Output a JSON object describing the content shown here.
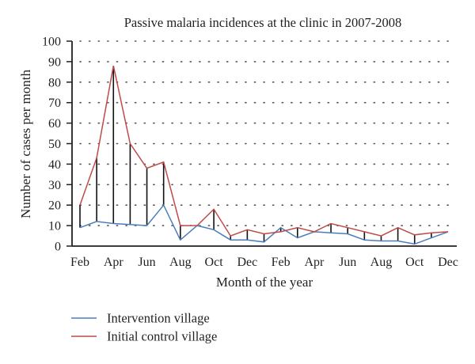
{
  "chart_data": {
    "type": "line",
    "title": "Passive malaria incidences at the clinic in 2007-2008",
    "xlabel": "Month of the year",
    "ylabel": "Number of cases per month",
    "ylim": [
      0,
      100
    ],
    "yticks": [
      0,
      10,
      20,
      30,
      40,
      50,
      60,
      70,
      80,
      90,
      100
    ],
    "grid": "horizontal dotted",
    "x": [
      "Feb 2007",
      "Mar 2007",
      "Apr 2007",
      "May 2007",
      "Jun 2007",
      "Jul 2007",
      "Aug 2007",
      "Sep 2007",
      "Oct 2007",
      "Nov 2007",
      "Dec 2007",
      "Jan 2008",
      "Feb 2008",
      "Mar 2008",
      "Apr 2008",
      "May 2008",
      "Jun 2008",
      "Jul 2008",
      "Aug 2008",
      "Sep 2008",
      "Oct 2008",
      "Nov 2008",
      "Dec 2008"
    ],
    "xtick_labels": [
      "Feb",
      "",
      "Apr",
      "",
      "Jun",
      "",
      "Aug",
      "",
      "Oct",
      "",
      "Dec",
      "",
      "Feb",
      "",
      "Apr",
      "",
      "Jun",
      "",
      "Aug",
      "",
      "Oct",
      "",
      "Dec"
    ],
    "series": [
      {
        "name": "Intervention village",
        "color": "#4a7ebb",
        "values": [
          9,
          12,
          11,
          10.5,
          10,
          20,
          3,
          10,
          8,
          3,
          3,
          2,
          9,
          4,
          7,
          6.5,
          6,
          3,
          2.5,
          2.5,
          1,
          4,
          7
        ]
      },
      {
        "name": "Initial control village",
        "color": "#be4b48",
        "values": [
          20,
          43,
          88,
          50,
          38,
          41,
          10,
          10,
          18,
          5,
          8,
          6,
          7,
          9,
          7,
          11,
          9,
          7,
          5,
          9,
          5.5,
          6.5,
          7
        ]
      }
    ],
    "difference_lines": true,
    "legend": "bottom-left"
  }
}
